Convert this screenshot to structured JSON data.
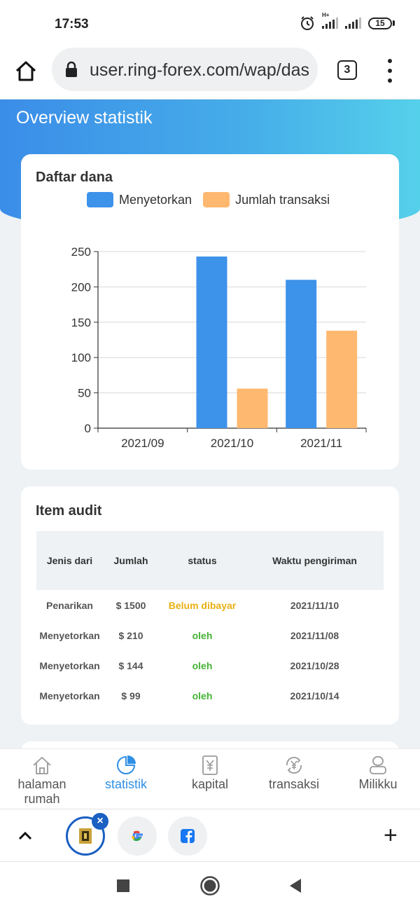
{
  "status_bar": {
    "time": "17:53",
    "battery": "15",
    "network": "H+"
  },
  "browser": {
    "url": "user.ring-forex.com/wap/das",
    "tab_count": "3"
  },
  "header": {
    "title": "Overview statistik"
  },
  "fund_card": {
    "title": "Daftar dana"
  },
  "chart_data": {
    "type": "bar",
    "categories": [
      "2021/09",
      "2021/10",
      "2021/11"
    ],
    "series": [
      {
        "name": "Menyetorkan",
        "color": "#3d92ea",
        "values": [
          0,
          243,
          210
        ]
      },
      {
        "name": "Jumlah transaksi",
        "color": "#ffb870",
        "values": [
          0,
          56,
          138
        ]
      }
    ],
    "ylim": [
      0,
      250
    ],
    "yticks": [
      0,
      50,
      100,
      150,
      200,
      250
    ],
    "grid": true,
    "legend_position": "top"
  },
  "audit": {
    "title": "Item audit",
    "headers": [
      "Jenis dari",
      "Jumlah",
      "status",
      "Waktu pengiriman"
    ],
    "rows": [
      {
        "type": "Penarikan",
        "amount": "$ 1500",
        "status": "Belum dibayar",
        "status_kind": "pending",
        "date": "2021/11/10"
      },
      {
        "type": "Menyetorkan",
        "amount": "$ 210",
        "status": "oleh",
        "status_kind": "ok",
        "date": "2021/11/08"
      },
      {
        "type": "Menyetorkan",
        "amount": "$ 144",
        "status": "oleh",
        "status_kind": "ok",
        "date": "2021/10/28"
      },
      {
        "type": "Menyetorkan",
        "amount": "$ 99",
        "status": "oleh",
        "status_kind": "ok",
        "date": "2021/10/14"
      }
    ]
  },
  "nav": {
    "items": [
      {
        "label": "halaman rumah",
        "icon": "home-outline-icon",
        "active": false
      },
      {
        "label": "statistik",
        "icon": "pie-chart-icon",
        "active": true
      },
      {
        "label": "kapital",
        "icon": "yen-document-icon",
        "active": false
      },
      {
        "label": "transaksi",
        "icon": "yen-exchange-icon",
        "active": false
      },
      {
        "label": "Milikku",
        "icon": "user-icon",
        "active": false
      }
    ],
    "active_color": "#2f8fe6"
  },
  "tab_strip": {
    "tabs": [
      {
        "name": "ring-forex",
        "icon": "site-favicon-icon",
        "active": true
      },
      {
        "name": "google",
        "icon": "google-g-icon",
        "active": false
      },
      {
        "name": "facebook",
        "icon": "facebook-f-icon",
        "active": false
      }
    ]
  },
  "colors": {
    "accent": "#3b8de8",
    "pending": "#e9b012",
    "ok": "#44b334"
  }
}
